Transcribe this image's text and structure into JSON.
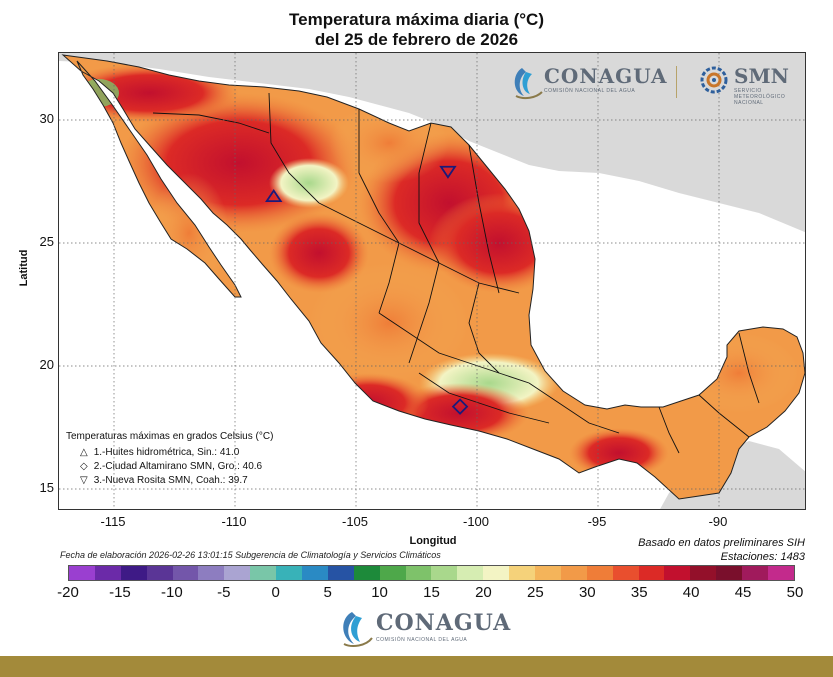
{
  "title_line1": "Temperatura máxima diaria (°C)",
  "title_line2": "del 25 de febrero de 2026",
  "axes": {
    "ylabel": "Latitud",
    "xlabel": "Longitud",
    "yticks": [
      "30",
      "25",
      "20",
      "15"
    ],
    "xticks": [
      "-115",
      "-110",
      "-105",
      "-100",
      "-95",
      "-90"
    ]
  },
  "legend": {
    "header": "Temperaturas máximas en grados Celsius (°C)",
    "items": [
      {
        "symbol": "△",
        "text": "1.-Huites hidrométrica, Sin.: 41.0"
      },
      {
        "symbol": "◇",
        "text": "2.-Ciudad Altamirano SMN, Gro.: 40.6"
      },
      {
        "symbol": "▽",
        "text": "3.-Nueva Rosita SMN, Coah.: 39.7"
      }
    ]
  },
  "footnote": "Fecha de elaboración 2026-02-26 13:01:15 Subgerencia de Climatología y Servicios Climáticos",
  "source": {
    "line1": "Basado en datos preliminares SIH",
    "line2": "Estaciones:  1483"
  },
  "colorbar": {
    "labels": [
      "-20",
      "-15",
      "-10",
      "-5",
      "0",
      "5",
      "10",
      "15",
      "20",
      "25",
      "30",
      "35",
      "40",
      "45",
      "50"
    ],
    "colors": [
      "#9a3fd0",
      "#6b2aa8",
      "#3e1a86",
      "#5a3596",
      "#7356aa",
      "#8d7dc0",
      "#aaa4d2",
      "#79c6a8",
      "#38b2b8",
      "#2a8ac4",
      "#2653a4",
      "#1d8a3a",
      "#4ea84a",
      "#7ec26a",
      "#a9d88c",
      "#d6edb2",
      "#f3f4c4",
      "#f5d27a",
      "#f4b45a",
      "#f29a48",
      "#ef7d38",
      "#e94f2e",
      "#dc2a26",
      "#c2102e",
      "#93102a",
      "#7a0f2c",
      "#a01a5c",
      "#c32a8c"
    ]
  },
  "logos": {
    "conagua": "CONAGUA",
    "conagua_sub": "COMISIÓN NACIONAL DEL AGUA",
    "smn": "SMN",
    "smn_sub": "SERVICIO METEOROLÓGICO NACIONAL"
  },
  "stations": [
    {
      "name": "Huites hidrométrica, Sin.",
      "lon": -108.4,
      "lat": 26.9,
      "value": 41.0,
      "marker": "triangle-up"
    },
    {
      "name": "Ciudad Altamirano SMN, Gro.",
      "lon": -100.7,
      "lat": 18.35,
      "value": 40.6,
      "marker": "diamond"
    },
    {
      "name": "Nueva Rosita SMN, Coah.",
      "lon": -101.2,
      "lat": 27.9,
      "value": 39.7,
      "marker": "triangle-down"
    }
  ]
}
